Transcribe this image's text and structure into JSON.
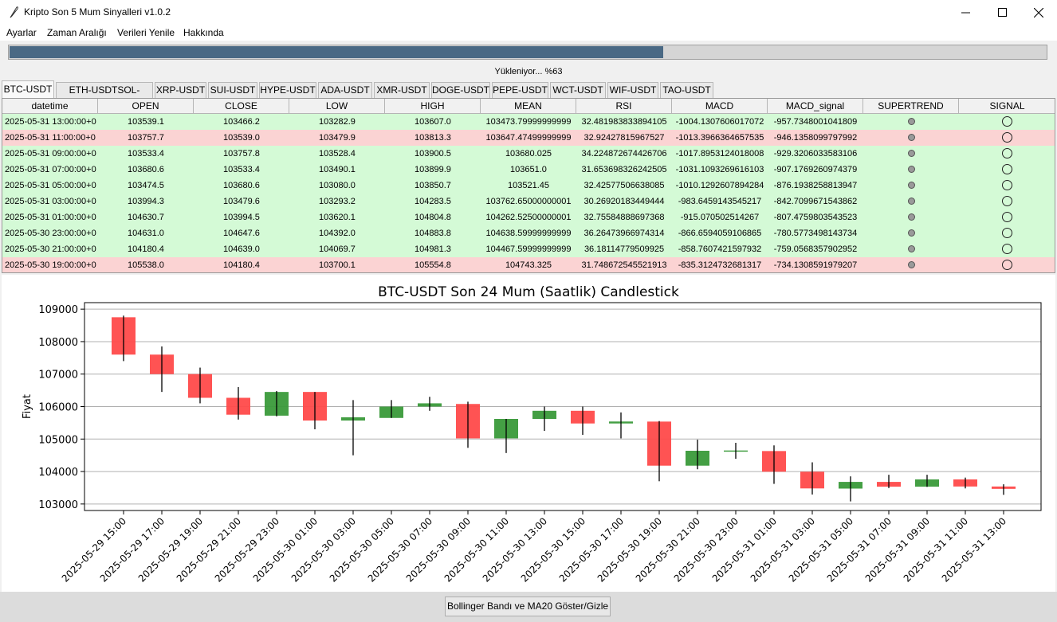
{
  "window": {
    "title": "Kripto Son 5 Mum Sinyalleri v1.0.2"
  },
  "menu": [
    "Ayarlar",
    "Zaman Aralığı",
    "Verileri Yenile",
    "Hakkında"
  ],
  "progress": {
    "value_percent": 63,
    "status_text": "Yükleniyor... %63"
  },
  "tabs": [
    "BTC-USDT",
    "ETH-USDTSOL-USDT",
    "XRP-USDT",
    "SUI-USDT",
    "HYPE-USDT",
    "ADA-USDT",
    "XMR-USDT",
    "DOGE-USDT",
    "PEPE-USDT",
    "WCT-USDT",
    "WIF-USDT",
    "TAO-USDT"
  ],
  "active_tab": 0,
  "table": {
    "columns": [
      "datetime",
      "OPEN",
      "CLOSE",
      "LOW",
      "HIGH",
      "MEAN",
      "RSI",
      "MACD",
      "MACD_signal",
      "SUPERTREND",
      "SIGNAL"
    ],
    "rows": [
      {
        "color": "green",
        "cells": [
          "2025-05-31 13:00:00+0",
          "103539.1",
          "103466.2",
          "103282.9",
          "103607.0",
          "103473.79999999999",
          "32.481983833894105",
          "-1004.1307606017072",
          "-957.7348001041809"
        ]
      },
      {
        "color": "red",
        "cells": [
          "2025-05-31 11:00:00+0",
          "103757.7",
          "103539.0",
          "103479.9",
          "103813.3",
          "103647.47499999999",
          "32.92427815967527",
          "-1013.3966364657535",
          "-946.1358099797992"
        ]
      },
      {
        "color": "green",
        "cells": [
          "2025-05-31 09:00:00+0",
          "103533.4",
          "103757.8",
          "103528.4",
          "103900.5",
          "103680.025",
          "34.224872674426706",
          "-1017.8953124018008",
          "-929.3206033583106"
        ]
      },
      {
        "color": "green",
        "cells": [
          "2025-05-31 07:00:00+0",
          "103680.6",
          "103533.4",
          "103490.1",
          "103899.9",
          "103651.0",
          "31.653698326242505",
          "-1031.1093269616103",
          "-907.1769260974379"
        ]
      },
      {
        "color": "green",
        "cells": [
          "2025-05-31 05:00:00+0",
          "103474.5",
          "103680.6",
          "103080.0",
          "103850.7",
          "103521.45",
          "32.42577506638085",
          "-1010.1292607894284",
          "-876.1938258813947"
        ]
      },
      {
        "color": "green",
        "cells": [
          "2025-05-31 03:00:00+0",
          "103994.3",
          "103479.6",
          "103293.2",
          "104283.5",
          "103762.65000000001",
          "30.26920183449444",
          "-983.6459143545217",
          "-842.7099671543862"
        ]
      },
      {
        "color": "green",
        "cells": [
          "2025-05-31 01:00:00+0",
          "104630.7",
          "103994.5",
          "103620.1",
          "104804.8",
          "104262.52500000001",
          "32.75584888697368",
          "-915.070502514267",
          "-807.4759803543523"
        ]
      },
      {
        "color": "green",
        "cells": [
          "2025-05-30 23:00:00+0",
          "104631.0",
          "104647.6",
          "104392.0",
          "104883.8",
          "104638.59999999999",
          "36.26473966974314",
          "-866.6594059106865",
          "-780.5773498143734"
        ]
      },
      {
        "color": "green",
        "cells": [
          "2025-05-30 21:00:00+0",
          "104180.4",
          "104639.0",
          "104069.7",
          "104981.3",
          "104467.59999999999",
          "36.18114779509925",
          "-858.7607421597932",
          "-759.0568357902952"
        ]
      },
      {
        "color": "red",
        "cells": [
          "2025-05-30 19:00:00+0",
          "105538.0",
          "104180.4",
          "103700.1",
          "105554.8",
          "104743.325",
          "31.748672545521913",
          "-835.3124732681317",
          "-734.1308591979207"
        ]
      }
    ]
  },
  "chart_data": {
    "type": "candlestick",
    "title": "BTC-USDT Son 24 Mum (Saatlik) Candlestick",
    "ylabel": "Fiyat",
    "xlabel": "",
    "ylim": [
      102800,
      109200
    ],
    "yticks": [
      103000,
      104000,
      105000,
      106000,
      107000,
      108000,
      109000
    ],
    "ytick_labels": [
      "103000",
      "104000",
      "105000",
      "106000",
      "107000",
      "108000",
      "109000"
    ],
    "up_color": "#3a9a3a",
    "down_color": "#ff4a4a",
    "candles": [
      {
        "x": "2025-05-29 15:00",
        "open": 108750,
        "close": 107600,
        "high": 108800,
        "low": 107400
      },
      {
        "x": "2025-05-29 17:00",
        "open": 107600,
        "close": 107000,
        "high": 107850,
        "low": 106450
      },
      {
        "x": "2025-05-29 19:00",
        "open": 107000,
        "close": 106270,
        "high": 107200,
        "low": 106100
      },
      {
        "x": "2025-05-29 21:00",
        "open": 106270,
        "close": 105750,
        "high": 106600,
        "low": 105600
      },
      {
        "x": "2025-05-29 23:00",
        "open": 105720,
        "close": 106450,
        "high": 106480,
        "low": 105700
      },
      {
        "x": "2025-05-30 01:00",
        "open": 106450,
        "close": 105570,
        "high": 106450,
        "low": 105300
      },
      {
        "x": "2025-05-30 03:00",
        "open": 105570,
        "close": 105670,
        "high": 106200,
        "low": 104500
      },
      {
        "x": "2025-05-30 05:00",
        "open": 105650,
        "close": 106000,
        "high": 106200,
        "low": 105650
      },
      {
        "x": "2025-05-30 07:00",
        "open": 106000,
        "close": 106100,
        "high": 106300,
        "low": 105870
      },
      {
        "x": "2025-05-30 09:00",
        "open": 106080,
        "close": 105020,
        "high": 106150,
        "low": 104730
      },
      {
        "x": "2025-05-30 11:00",
        "open": 105020,
        "close": 105620,
        "high": 105620,
        "low": 104570
      },
      {
        "x": "2025-05-30 13:00",
        "open": 105620,
        "close": 105870,
        "high": 106000,
        "low": 105250
      },
      {
        "x": "2025-05-30 15:00",
        "open": 105870,
        "close": 105480,
        "high": 106000,
        "low": 105130
      },
      {
        "x": "2025-05-30 17:00",
        "open": 105480,
        "close": 105540,
        "high": 105820,
        "low": 105020
      },
      {
        "x": "2025-05-30 19:00",
        "open": 105538,
        "close": 104180.4,
        "high": 105554.8,
        "low": 103700.1
      },
      {
        "x": "2025-05-30 21:00",
        "open": 104180.4,
        "close": 104639.0,
        "high": 104981.3,
        "low": 104069.7
      },
      {
        "x": "2025-05-30 23:00",
        "open": 104631.0,
        "close": 104647.6,
        "high": 104883.8,
        "low": 104392.0
      },
      {
        "x": "2025-05-31 01:00",
        "open": 104630.7,
        "close": 103994.5,
        "high": 104804.8,
        "low": 103620.1
      },
      {
        "x": "2025-05-31 03:00",
        "open": 103994.3,
        "close": 103479.6,
        "high": 104283.5,
        "low": 103293.2
      },
      {
        "x": "2025-05-31 05:00",
        "open": 103474.5,
        "close": 103680.6,
        "high": 103850.7,
        "low": 103080.0
      },
      {
        "x": "2025-05-31 07:00",
        "open": 103680.6,
        "close": 103533.4,
        "high": 103899.9,
        "low": 103490.1
      },
      {
        "x": "2025-05-31 09:00",
        "open": 103533.4,
        "close": 103757.8,
        "high": 103900.5,
        "low": 103528.4
      },
      {
        "x": "2025-05-31 11:00",
        "open": 103757.7,
        "close": 103539.0,
        "high": 103813.3,
        "low": 103479.9
      },
      {
        "x": "2025-05-31 13:00",
        "open": 103539.1,
        "close": 103466.2,
        "high": 103607.0,
        "low": 103282.9
      }
    ]
  },
  "buttons": {
    "toggle_bollinger": "Bollinger Bandı ve MA20 Göster/Gizle"
  },
  "icons": {
    "app": "feather-icon",
    "minimize": "minimize-icon",
    "maximize": "maximize-icon",
    "close": "close-icon"
  }
}
